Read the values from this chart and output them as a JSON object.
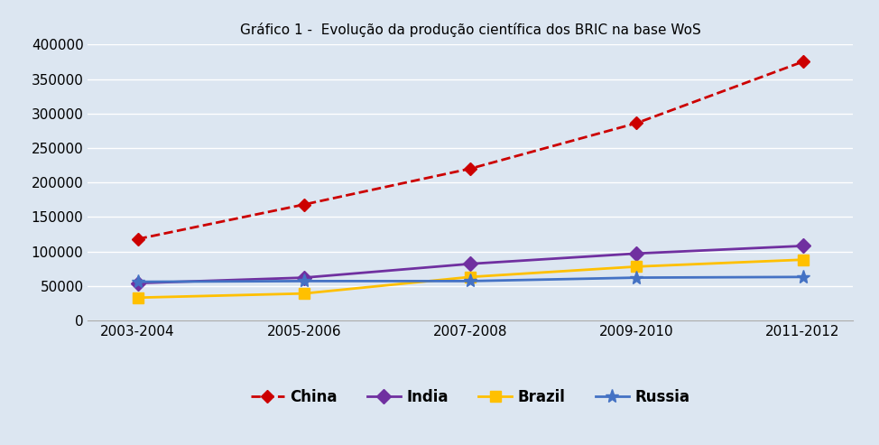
{
  "categories": [
    "2003-2004",
    "2005-2006",
    "2007-2008",
    "2009-2010",
    "2011-2012"
  ],
  "series": {
    "China": [
      118000,
      168000,
      220000,
      286000,
      375000
    ],
    "India": [
      54000,
      62000,
      82000,
      97000,
      108000
    ],
    "Brazil": [
      33000,
      39000,
      63000,
      78000,
      88000
    ],
    "Russia": [
      56000,
      57000,
      57000,
      62000,
      63000
    ]
  },
  "colors": {
    "China": "#cc0000",
    "India": "#7030a0",
    "Brazil": "#ffc000",
    "Russia": "#4472c4"
  },
  "linestyles": {
    "China": "--",
    "India": "-",
    "Brazil": "-",
    "Russia": "-"
  },
  "markers": {
    "China": "D",
    "India": "D",
    "Brazil": "s",
    "Russia": "*"
  },
  "marker_sizes": {
    "China": 7,
    "India": 8,
    "Brazil": 8,
    "Russia": 11
  },
  "line_widths": {
    "China": 2.0,
    "India": 2.0,
    "Brazil": 2.0,
    "Russia": 2.0
  },
  "ylim": [
    0,
    400000
  ],
  "yticks": [
    0,
    50000,
    100000,
    150000,
    200000,
    250000,
    300000,
    350000,
    400000
  ],
  "background_color": "#dce6f1",
  "grid_color": "#ffffff",
  "title": "Gráfico 1 -  Evolução da produção científica dos BRIC na base WoS"
}
